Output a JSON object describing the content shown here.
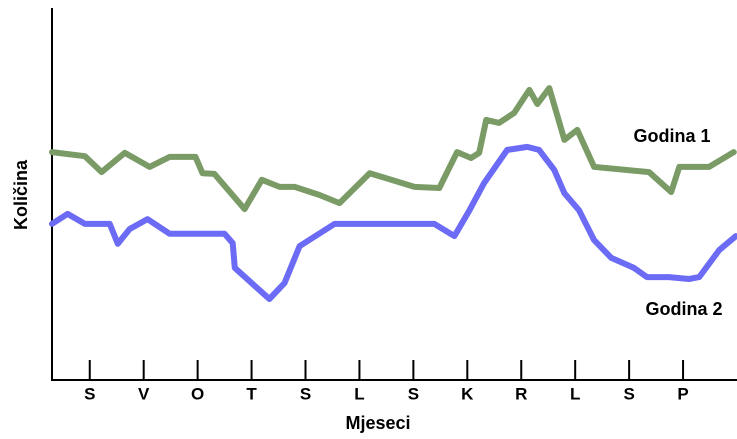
{
  "chart_data": {
    "type": "line",
    "y_label": "Količina",
    "x_label": "Mjeseci",
    "xlim": [
      0.3,
      13
    ],
    "ylim": [
      0,
      100
    ],
    "xticks": [
      {
        "value": 1,
        "label": "S"
      },
      {
        "value": 2,
        "label": "V"
      },
      {
        "value": 3,
        "label": "O"
      },
      {
        "value": 4,
        "label": "T"
      },
      {
        "value": 5,
        "label": "S"
      },
      {
        "value": 6,
        "label": "L"
      },
      {
        "value": 7,
        "label": "S"
      },
      {
        "value": 8,
        "label": "K"
      },
      {
        "value": 9,
        "label": "R"
      },
      {
        "value": 10,
        "label": "L"
      },
      {
        "value": 11,
        "label": "S"
      },
      {
        "value": 12,
        "label": "P"
      }
    ],
    "series": [
      {
        "name": "Godina 1",
        "color": "#7a9b66",
        "x": [
          0.3,
          0.91,
          1.22,
          1.65,
          2.11,
          2.48,
          2.96,
          3.09,
          3.31,
          3.87,
          4.19,
          4.52,
          4.8,
          5.26,
          5.63,
          6.19,
          7.02,
          7.48,
          7.81,
          8.07,
          8.22,
          8.35,
          8.59,
          8.87,
          9.15,
          9.3,
          9.52,
          9.8,
          10.04,
          10.35,
          11.37,
          11.78,
          11.93,
          12.48,
          12.94
        ],
        "values": [
          61.6,
          60.5,
          56.2,
          61.4,
          57.6,
          60.3,
          60.3,
          55.9,
          55.7,
          46.2,
          54.1,
          52.2,
          52.2,
          50,
          47.8,
          55.9,
          52.2,
          51.9,
          61.6,
          60,
          61.4,
          70.3,
          69.5,
          72.2,
          78.4,
          74.6,
          78.9,
          64.9,
          67.6,
          57.6,
          56.2,
          50.8,
          57.6,
          57.6,
          61.6
        ]
      },
      {
        "name": "Godina 2",
        "color": "#6b6bf5",
        "x": [
          0.3,
          0.59,
          0.91,
          1.37,
          1.52,
          1.74,
          2.07,
          2.48,
          3.5,
          3.65,
          3.69,
          4.33,
          4.61,
          4.89,
          5.54,
          7.39,
          7.76,
          8.04,
          8.31,
          8.74,
          9.11,
          9.33,
          9.61,
          9.8,
          10.07,
          10.35,
          10.67,
          11.09,
          11.33,
          11.74,
          12.11,
          12.3,
          12.67,
          12.98
        ],
        "values": [
          42.2,
          44.9,
          42.2,
          42.2,
          36.8,
          40.8,
          43.5,
          39.5,
          39.5,
          37,
          30.3,
          21.9,
          26.2,
          36.2,
          42.2,
          42.2,
          38.9,
          45.9,
          53.2,
          62.2,
          63,
          62.2,
          56.8,
          50.5,
          45.9,
          37.8,
          33,
          30.3,
          27.8,
          27.8,
          27.3,
          27.8,
          35.1,
          38.9
        ]
      }
    ]
  }
}
